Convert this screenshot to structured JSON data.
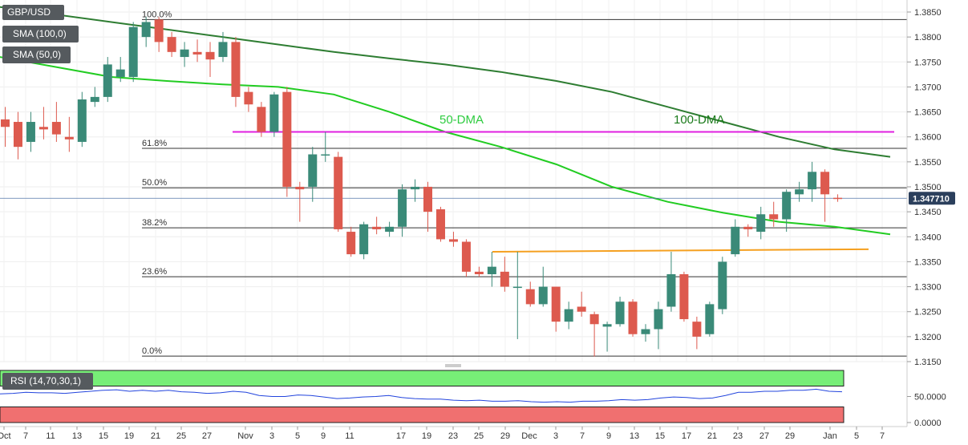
{
  "legend": {
    "symbol": "GBP/USD",
    "sma100": "SMA (100,0)",
    "sma50": "SMA (50,0)",
    "rsi": "RSI (14,70,30,1)"
  },
  "chart_data": {
    "type": "candlestick",
    "price_axis": {
      "ticks": [
        "1.3850",
        "1.3800",
        "1.3750",
        "1.3700",
        "1.3650",
        "1.3600",
        "1.3550",
        "1.3500",
        "1.3450",
        "1.3400",
        "1.3350",
        "1.3300",
        "1.3250",
        "1.3200",
        "1.3150"
      ],
      "range": [
        1.315,
        1.3865
      ]
    },
    "current_price": "1.347710",
    "x_axis_labels": [
      "Oct",
      "7",
      "11",
      "13",
      "15",
      "19",
      "21",
      "25",
      "27",
      "Nov",
      "3",
      "5",
      "9",
      "11",
      "17",
      "19",
      "23",
      "25",
      "29",
      "Dec",
      "3",
      "7",
      "9",
      "13",
      "15",
      "17",
      "21",
      "23",
      "27",
      "29",
      "Jan",
      "5",
      "7"
    ],
    "fibonacci": [
      {
        "label": "100.0%",
        "value": 1.3835
      },
      {
        "label": "61.8%",
        "value": 1.3577
      },
      {
        "label": "50.0%",
        "value": 1.3498
      },
      {
        "label": "38.2%",
        "value": 1.3418
      },
      {
        "label": "23.6%",
        "value": 1.332
      },
      {
        "label": "0.0%",
        "value": 1.3161
      }
    ],
    "annotations": [
      {
        "text": "50-DMA",
        "color": "#2ecc40"
      },
      {
        "text": "100-DMA",
        "color": "#1a7a1a"
      }
    ],
    "resistance_line": {
      "value": 1.361,
      "color": "#e020e0"
    },
    "support_line": {
      "from": 1.337,
      "to": 1.3375,
      "color": "#f5a020"
    },
    "sma100": [
      1.386,
      1.3845,
      1.383,
      1.3815,
      1.38,
      1.3785,
      1.377,
      1.3757,
      1.3745,
      1.373,
      1.3712,
      1.369,
      1.366,
      1.363,
      1.36,
      1.3575,
      1.356
    ],
    "sma50": [
      1.376,
      1.374,
      1.372,
      1.3712,
      1.3705,
      1.37,
      1.3685,
      1.365,
      1.361,
      1.358,
      1.3545,
      1.35,
      1.347,
      1.3448,
      1.343,
      1.342,
      1.3405
    ],
    "candles": [
      {
        "o": 1.3635,
        "h": 1.366,
        "l": 1.358,
        "c": 1.362
      },
      {
        "o": 1.363,
        "h": 1.365,
        "l": 1.3555,
        "c": 1.358
      },
      {
        "o": 1.359,
        "h": 1.365,
        "l": 1.357,
        "c": 1.363
      },
      {
        "o": 1.362,
        "h": 1.366,
        "l": 1.3595,
        "c": 1.3615
      },
      {
        "o": 1.363,
        "h": 1.367,
        "l": 1.359,
        "c": 1.3605
      },
      {
        "o": 1.36,
        "h": 1.364,
        "l": 1.357,
        "c": 1.3595
      },
      {
        "o": 1.359,
        "h": 1.369,
        "l": 1.358,
        "c": 1.3675
      },
      {
        "o": 1.367,
        "h": 1.37,
        "l": 1.366,
        "c": 1.368
      },
      {
        "o": 1.368,
        "h": 1.376,
        "l": 1.367,
        "c": 1.3745
      },
      {
        "o": 1.372,
        "h": 1.376,
        "l": 1.371,
        "c": 1.3735
      },
      {
        "o": 1.372,
        "h": 1.383,
        "l": 1.371,
        "c": 1.382
      },
      {
        "o": 1.38,
        "h": 1.384,
        "l": 1.378,
        "c": 1.383
      },
      {
        "o": 1.3835,
        "h": 1.384,
        "l": 1.377,
        "c": 1.379
      },
      {
        "o": 1.38,
        "h": 1.381,
        "l": 1.376,
        "c": 1.377
      },
      {
        "o": 1.376,
        "h": 1.379,
        "l": 1.374,
        "c": 1.3775
      },
      {
        "o": 1.377,
        "h": 1.3795,
        "l": 1.375,
        "c": 1.3765
      },
      {
        "o": 1.377,
        "h": 1.379,
        "l": 1.372,
        "c": 1.3755
      },
      {
        "o": 1.376,
        "h": 1.381,
        "l": 1.375,
        "c": 1.379
      },
      {
        "o": 1.379,
        "h": 1.38,
        "l": 1.366,
        "c": 1.368
      },
      {
        "o": 1.369,
        "h": 1.37,
        "l": 1.365,
        "c": 1.3665
      },
      {
        "o": 1.366,
        "h": 1.367,
        "l": 1.36,
        "c": 1.361
      },
      {
        "o": 1.361,
        "h": 1.369,
        "l": 1.36,
        "c": 1.3685
      },
      {
        "o": 1.369,
        "h": 1.37,
        "l": 1.348,
        "c": 1.35
      },
      {
        "o": 1.35,
        "h": 1.351,
        "l": 1.343,
        "c": 1.3495
      },
      {
        "o": 1.35,
        "h": 1.358,
        "l": 1.347,
        "c": 1.3565
      },
      {
        "o": 1.3565,
        "h": 1.361,
        "l": 1.355,
        "c": 1.3565
      },
      {
        "o": 1.356,
        "h": 1.357,
        "l": 1.341,
        "c": 1.3415
      },
      {
        "o": 1.341,
        "h": 1.342,
        "l": 1.336,
        "c": 1.3365
      },
      {
        "o": 1.3365,
        "h": 1.343,
        "l": 1.3355,
        "c": 1.3425
      },
      {
        "o": 1.342,
        "h": 1.344,
        "l": 1.3405,
        "c": 1.3415
      },
      {
        "o": 1.341,
        "h": 1.343,
        "l": 1.34,
        "c": 1.342
      },
      {
        "o": 1.342,
        "h": 1.3505,
        "l": 1.34,
        "c": 1.3495
      },
      {
        "o": 1.3495,
        "h": 1.3515,
        "l": 1.347,
        "c": 1.35
      },
      {
        "o": 1.35,
        "h": 1.351,
        "l": 1.341,
        "c": 1.345
      },
      {
        "o": 1.3455,
        "h": 1.346,
        "l": 1.339,
        "c": 1.3395
      },
      {
        "o": 1.3395,
        "h": 1.341,
        "l": 1.338,
        "c": 1.339
      },
      {
        "o": 1.339,
        "h": 1.3395,
        "l": 1.332,
        "c": 1.333
      },
      {
        "o": 1.333,
        "h": 1.334,
        "l": 1.332,
        "c": 1.3325
      },
      {
        "o": 1.3325,
        "h": 1.337,
        "l": 1.33,
        "c": 1.334
      },
      {
        "o": 1.333,
        "h": 1.336,
        "l": 1.329,
        "c": 1.33
      },
      {
        "o": 1.33,
        "h": 1.337,
        "l": 1.3195,
        "c": 1.33
      },
      {
        "o": 1.3295,
        "h": 1.331,
        "l": 1.326,
        "c": 1.3265
      },
      {
        "o": 1.3265,
        "h": 1.334,
        "l": 1.326,
        "c": 1.33
      },
      {
        "o": 1.33,
        "h": 1.33,
        "l": 1.321,
        "c": 1.323
      },
      {
        "o": 1.323,
        "h": 1.327,
        "l": 1.3215,
        "c": 1.3255
      },
      {
        "o": 1.326,
        "h": 1.329,
        "l": 1.324,
        "c": 1.325
      },
      {
        "o": 1.3245,
        "h": 1.325,
        "l": 1.316,
        "c": 1.3225
      },
      {
        "o": 1.322,
        "h": 1.323,
        "l": 1.317,
        "c": 1.3225
      },
      {
        "o": 1.3225,
        "h": 1.328,
        "l": 1.322,
        "c": 1.327
      },
      {
        "o": 1.327,
        "h": 1.3275,
        "l": 1.32,
        "c": 1.3205
      },
      {
        "o": 1.3205,
        "h": 1.3225,
        "l": 1.319,
        "c": 1.3215
      },
      {
        "o": 1.3215,
        "h": 1.327,
        "l": 1.3175,
        "c": 1.3255
      },
      {
        "o": 1.326,
        "h": 1.337,
        "l": 1.325,
        "c": 1.3325
      },
      {
        "o": 1.3325,
        "h": 1.333,
        "l": 1.323,
        "c": 1.3235
      },
      {
        "o": 1.323,
        "h": 1.324,
        "l": 1.3175,
        "c": 1.32
      },
      {
        "o": 1.3205,
        "h": 1.327,
        "l": 1.32,
        "c": 1.3265
      },
      {
        "o": 1.3255,
        "h": 1.336,
        "l": 1.3245,
        "c": 1.335
      },
      {
        "o": 1.3365,
        "h": 1.3435,
        "l": 1.336,
        "c": 1.342
      },
      {
        "o": 1.342,
        "h": 1.3425,
        "l": 1.34,
        "c": 1.3415
      },
      {
        "o": 1.341,
        "h": 1.346,
        "l": 1.3395,
        "c": 1.3445
      },
      {
        "o": 1.3445,
        "h": 1.347,
        "l": 1.342,
        "c": 1.3435
      },
      {
        "o": 1.3435,
        "h": 1.3495,
        "l": 1.341,
        "c": 1.349
      },
      {
        "o": 1.3485,
        "h": 1.351,
        "l": 1.347,
        "c": 1.3495
      },
      {
        "o": 1.3495,
        "h": 1.355,
        "l": 1.347,
        "c": 1.353
      },
      {
        "o": 1.353,
        "h": 1.3535,
        "l": 1.343,
        "c": 1.3485
      },
      {
        "o": 1.3478,
        "h": 1.3485,
        "l": 1.347,
        "c": 1.3477
      }
    ],
    "rsi": {
      "ticks": [
        "50.0000",
        "0.0000"
      ],
      "overbought": 70,
      "oversold": 30,
      "values": [
        55,
        56,
        58,
        57,
        57,
        56,
        58,
        60,
        62,
        63,
        60,
        62,
        60,
        62,
        59,
        58,
        56,
        57,
        60,
        58,
        52,
        50,
        50,
        53,
        52,
        49,
        46,
        47,
        49,
        50,
        52,
        48,
        46,
        45,
        45,
        43,
        42,
        43,
        41,
        41,
        42,
        40,
        39,
        40,
        39,
        41,
        41,
        42,
        44,
        43,
        44,
        47,
        49,
        48,
        46,
        47,
        52,
        58,
        58,
        60,
        60,
        62,
        62,
        64,
        60,
        59
      ]
    }
  }
}
